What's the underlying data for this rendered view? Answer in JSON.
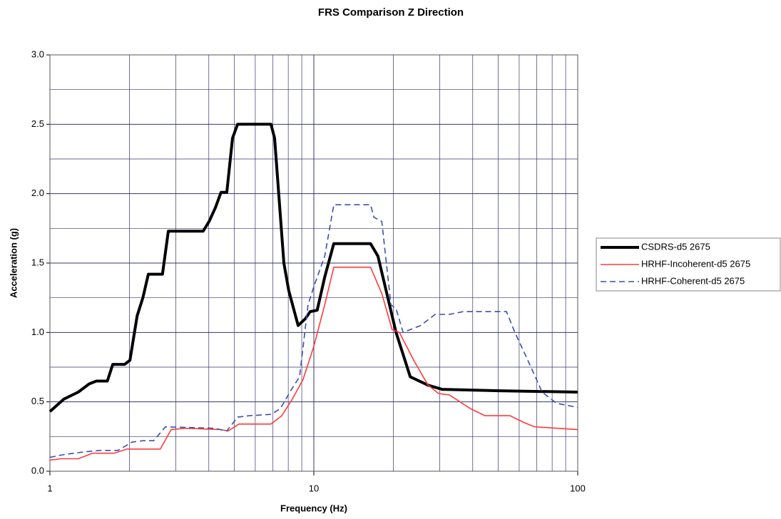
{
  "chart_data": {
    "type": "line",
    "title": "FRS Comparison Z Direction",
    "x_label": "Frequency (Hz)",
    "y_label": "Acceleration (g)",
    "xscale": "log",
    "xlim": [
      1,
      100
    ],
    "xticks": [
      1,
      10,
      100
    ],
    "ylim": [
      0,
      3
    ],
    "yticks": [
      {
        "value": 0,
        "label": "0.0"
      },
      {
        "value": 0.5,
        "label": "0.5"
      },
      {
        "value": 1,
        "label": "1.0"
      },
      {
        "value": 1.5,
        "label": "1.5"
      },
      {
        "value": 2,
        "label": "2.0"
      },
      {
        "value": 2.5,
        "label": "2.5"
      },
      {
        "value": 3,
        "label": "3.0"
      }
    ],
    "grid": true,
    "legend": "right",
    "series": [
      {
        "name": "CSDRS-d5 2675",
        "color": "#000000",
        "style": "solid",
        "width": 4,
        "x": [
          1.0,
          1.13,
          1.28,
          1.41,
          1.5,
          1.65,
          1.73,
          1.92,
          2.01,
          2.14,
          2.25,
          2.36,
          2.67,
          2.81,
          3.81,
          4.01,
          4.24,
          4.45,
          4.68,
          4.92,
          5.14,
          6.88,
          7.1,
          7.7,
          8.04,
          8.72,
          9.29,
          9.69,
          10.3,
          11.0,
          11.9,
          16.4,
          17.5,
          20.5,
          23.2,
          27.1,
          30.6,
          50.4,
          100
        ],
        "values": [
          0.43,
          0.52,
          0.57,
          0.63,
          0.65,
          0.65,
          0.77,
          0.77,
          0.8,
          1.12,
          1.25,
          1.42,
          1.42,
          1.73,
          1.73,
          1.8,
          1.9,
          2.01,
          2.01,
          2.4,
          2.5,
          2.5,
          2.4,
          1.5,
          1.3,
          1.05,
          1.1,
          1.15,
          1.16,
          1.4,
          1.64,
          1.64,
          1.55,
          1.0,
          0.68,
          0.62,
          0.59,
          0.58,
          0.57
        ]
      },
      {
        "name": "HRHF-Incoherent-d5 2675",
        "color": "#ff3b3b",
        "style": "solid",
        "width": 1.6,
        "x": [
          1.0,
          1.1,
          1.28,
          1.45,
          1.75,
          1.96,
          2.62,
          2.88,
          3.26,
          4.45,
          4.74,
          5.2,
          6.88,
          7.56,
          8.29,
          9.1,
          10.0,
          11.0,
          11.9,
          16.4,
          18.1,
          19.8,
          21.1,
          23.9,
          27.1,
          29.7,
          32.6,
          39.3,
          44.5,
          55.4,
          62.7,
          68.8,
          100
        ],
        "values": [
          0.08,
          0.09,
          0.09,
          0.13,
          0.13,
          0.16,
          0.16,
          0.3,
          0.31,
          0.3,
          0.29,
          0.34,
          0.34,
          0.4,
          0.52,
          0.66,
          0.9,
          1.2,
          1.47,
          1.47,
          1.28,
          1.02,
          1.0,
          0.8,
          0.62,
          0.56,
          0.55,
          0.45,
          0.4,
          0.4,
          0.35,
          0.32,
          0.3
        ]
      },
      {
        "name": "HRHF-Coherent-d5 2675",
        "color": "#3a4fb0",
        "style": "dashed",
        "width": 1.6,
        "x": [
          1.0,
          1.13,
          1.36,
          1.55,
          1.81,
          2.05,
          2.25,
          2.47,
          2.74,
          4.19,
          4.68,
          5.14,
          5.71,
          6.88,
          7.46,
          8.29,
          8.83,
          9.51,
          10.0,
          11.0,
          11.9,
          16.4,
          16.9,
          18.1,
          19.6,
          20.5,
          21.8,
          25.4,
          28.8,
          32.6,
          36.9,
          53.7,
          57.8,
          64.7,
          73.3,
          83.0,
          100
        ],
        "values": [
          0.1,
          0.12,
          0.14,
          0.15,
          0.15,
          0.21,
          0.22,
          0.22,
          0.32,
          0.31,
          0.29,
          0.39,
          0.4,
          0.41,
          0.45,
          0.6,
          0.68,
          1.2,
          1.33,
          1.55,
          1.92,
          1.92,
          1.83,
          1.8,
          1.2,
          1.17,
          1.0,
          1.05,
          1.13,
          1.13,
          1.15,
          1.15,
          1.0,
          0.8,
          0.57,
          0.49,
          0.46
        ]
      }
    ]
  }
}
